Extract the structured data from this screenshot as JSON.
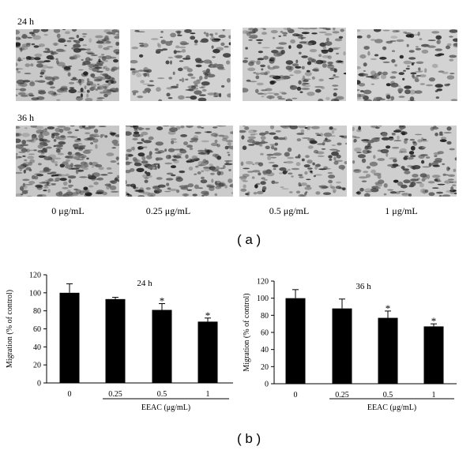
{
  "panel_a": {
    "label": "( a )",
    "rows": [
      {
        "time_label": "24 h"
      },
      {
        "time_label": "36 h"
      }
    ],
    "concentrations": [
      "0 μg/mL",
      "0.25 μg/mL",
      "0.5 μg/mL",
      "1 μg/mL"
    ],
    "cell_densities": [
      [
        0.62,
        0.38,
        0.45,
        0.34
      ],
      [
        0.66,
        0.55,
        0.44,
        0.46
      ]
    ]
  },
  "panel_b": {
    "label": "( b )"
  },
  "chart_data": [
    {
      "type": "bar",
      "title": "24 h",
      "ylabel": "Migration (% of control)",
      "xlabel": "EEAC (μg/mL)",
      "categories": [
        "0",
        "0.25",
        "0.5",
        "1"
      ],
      "values": [
        100,
        93,
        81,
        68
      ],
      "errors": [
        10,
        2,
        7,
        4
      ],
      "significant": [
        "",
        "",
        "*",
        "*"
      ],
      "ylim": [
        0,
        120
      ],
      "yticks": [
        "0",
        "20",
        "40",
        "60",
        "80",
        "100",
        "120"
      ],
      "bar_color": "#000000"
    },
    {
      "type": "bar",
      "title": "36 h",
      "ylabel": "Migration (% of control)",
      "xlabel": "EEAC (μg/mL)",
      "categories": [
        "0",
        "0.25",
        "0.5",
        "1"
      ],
      "values": [
        100,
        88,
        77,
        67
      ],
      "errors": [
        10,
        11,
        8,
        3
      ],
      "significant": [
        "",
        "",
        "*",
        "*"
      ],
      "ylim": [
        0,
        120
      ],
      "yticks": [
        "0",
        "20",
        "40",
        "60",
        "80",
        "100",
        "120"
      ],
      "bar_color": "#000000"
    }
  ]
}
